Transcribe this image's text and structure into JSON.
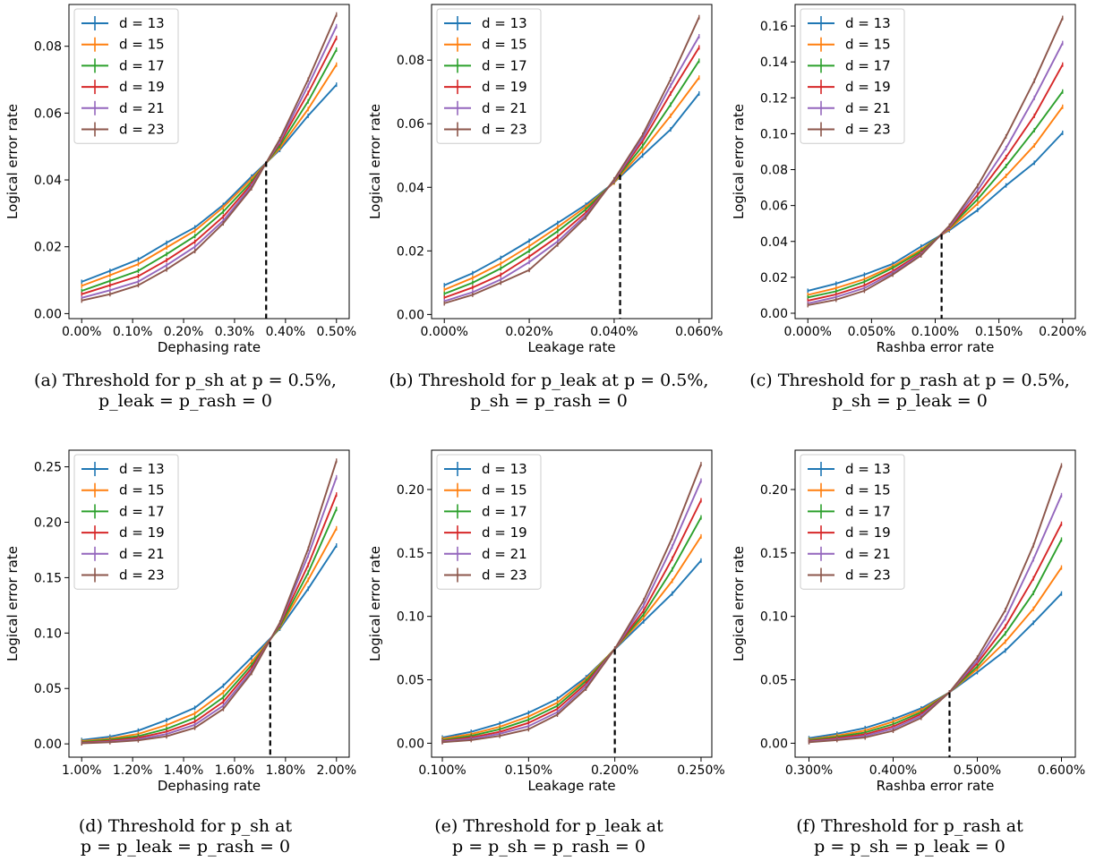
{
  "series_colors": [
    "#1f77b4",
    "#ff7f0e",
    "#2ca02c",
    "#d62728",
    "#9467bd",
    "#8c564b"
  ],
  "panels": [
    {
      "caption_line1": "(a) Threshold for p_sh at p = 0.5%,",
      "caption_line2": "p_leak = p_rash = 0"
    },
    {
      "caption_line1": "(b) Threshold for p_leak at p = 0.5%,",
      "caption_line2": "p_sh = p_rash = 0"
    },
    {
      "caption_line1": "(c) Threshold for p_rash at p = 0.5%,",
      "caption_line2": "p_sh = p_leak = 0"
    },
    {
      "caption_line1": "(d) Threshold for p_sh at",
      "caption_line2": "p = p_leak = p_rash = 0"
    },
    {
      "caption_line1": "(e) Threshold for p_leak at",
      "caption_line2": "p = p_sh = p_rash = 0"
    },
    {
      "caption_line1": "(f) Threshold for p_rash at",
      "caption_line2": "p = p_sh = p_leak = 0"
    }
  ],
  "chart_data": [
    {
      "type": "line",
      "xlabel": "Dephasing rate",
      "ylabel": "Logical error rate",
      "xlim": [
        -0.00025,
        0.00525
      ],
      "ylim": [
        -0.0015,
        0.0925
      ],
      "xticks": [
        0,
        0.001,
        0.002,
        0.003,
        0.004,
        0.005
      ],
      "xtick_labels": [
        "0.00%",
        "0.10%",
        "0.20%",
        "0.30%",
        "0.40%",
        "0.50%"
      ],
      "yticks": [
        0,
        0.02,
        0.04,
        0.06,
        0.08
      ],
      "ytick_labels": [
        "0.00",
        "0.02",
        "0.04",
        "0.06",
        "0.08"
      ],
      "threshold": {
        "x": 0.00362,
        "y": 0.0455
      },
      "legend": "upper left",
      "x": [
        0,
        0.000556,
        0.001111,
        0.001667,
        0.002222,
        0.002778,
        0.003333,
        0.003889,
        0.004444,
        0.005
      ],
      "series": [
        {
          "name": "d = 13",
          "values": [
            0.0095,
            0.0128,
            0.0162,
            0.0212,
            0.0258,
            0.0325,
            0.041,
            0.049,
            0.0592,
            0.0685
          ]
        },
        {
          "name": "d = 15",
          "values": [
            0.0083,
            0.0115,
            0.0148,
            0.0198,
            0.0248,
            0.0318,
            0.0403,
            0.0495,
            0.0612,
            0.0745
          ]
        },
        {
          "name": "d = 17",
          "values": [
            0.0068,
            0.0098,
            0.0128,
            0.0178,
            0.0232,
            0.0305,
            0.0395,
            0.0502,
            0.0635,
            0.079
          ]
        },
        {
          "name": "d = 19",
          "values": [
            0.0058,
            0.0085,
            0.0112,
            0.016,
            0.0215,
            0.029,
            0.0388,
            0.051,
            0.066,
            0.0825
          ]
        },
        {
          "name": "d = 21",
          "values": [
            0.0047,
            0.007,
            0.0096,
            0.0145,
            0.02,
            0.0278,
            0.0382,
            0.0515,
            0.0682,
            0.086
          ]
        },
        {
          "name": "d = 23",
          "values": [
            0.0039,
            0.0058,
            0.0085,
            0.0132,
            0.0187,
            0.027,
            0.0375,
            0.0522,
            0.07,
            0.0895
          ]
        }
      ]
    },
    {
      "type": "line",
      "xlabel": "Leakage rate",
      "ylabel": "Logical error rate",
      "xlim": [
        -3e-05,
        0.00063
      ],
      "ylim": [
        -0.0013,
        0.0975
      ],
      "xticks": [
        0,
        0.0002,
        0.0004,
        0.0006
      ],
      "xtick_labels": [
        "0.000%",
        "0.020%",
        "0.040%",
        "0.060%"
      ],
      "yticks": [
        0,
        0.02,
        0.04,
        0.06,
        0.08
      ],
      "ytick_labels": [
        "0.00",
        "0.02",
        "0.04",
        "0.06",
        "0.08"
      ],
      "threshold": {
        "x": 0.000414,
        "y": 0.044
      },
      "legend": "upper left",
      "x": [
        0,
        6.67e-05,
        0.000133,
        0.0002,
        0.000267,
        0.000333,
        0.0004,
        0.000467,
        0.000533,
        0.0006
      ],
      "series": [
        {
          "name": "d = 13",
          "values": [
            0.0092,
            0.013,
            0.0178,
            0.0232,
            0.0288,
            0.0345,
            0.0415,
            0.05,
            0.0582,
            0.0695
          ]
        },
        {
          "name": "d = 15",
          "values": [
            0.0078,
            0.0115,
            0.016,
            0.0215,
            0.0275,
            0.0338,
            0.0415,
            0.0515,
            0.0625,
            0.0745
          ]
        },
        {
          "name": "d = 17",
          "values": [
            0.0065,
            0.01,
            0.0145,
            0.02,
            0.0262,
            0.033,
            0.0418,
            0.053,
            0.066,
            0.0798
          ]
        },
        {
          "name": "d = 19",
          "values": [
            0.0053,
            0.0085,
            0.0125,
            0.0182,
            0.0245,
            0.032,
            0.042,
            0.0545,
            0.0695,
            0.084
          ]
        },
        {
          "name": "d = 21",
          "values": [
            0.0042,
            0.007,
            0.011,
            0.0165,
            0.023,
            0.0312,
            0.0422,
            0.0555,
            0.072,
            0.0875
          ]
        },
        {
          "name": "d = 23",
          "values": [
            0.0035,
            0.0062,
            0.01,
            0.014,
            0.022,
            0.0305,
            0.0425,
            0.0565,
            0.074,
            0.0935
          ]
        }
      ]
    },
    {
      "type": "line",
      "xlabel": "Rashba error rate",
      "ylabel": "Logical error rate",
      "xlim": [
        -0.0001,
        0.0021
      ],
      "ylim": [
        -0.003,
        0.172
      ],
      "xticks": [
        0,
        0.0005,
        0.001,
        0.0015,
        0.002
      ],
      "xtick_labels": [
        "0.000%",
        "0.050%",
        "0.100%",
        "0.150%",
        "0.200%"
      ],
      "yticks": [
        0,
        0.02,
        0.04,
        0.06,
        0.08,
        0.1,
        0.12,
        0.14,
        0.16
      ],
      "ytick_labels": [
        "0.00",
        "0.02",
        "0.04",
        "0.06",
        "0.08",
        "0.10",
        "0.12",
        "0.14",
        "0.16"
      ],
      "threshold": {
        "x": 0.00105,
        "y": 0.044
      },
      "legend": "upper left",
      "x": [
        0,
        0.000222,
        0.000444,
        0.000667,
        0.000889,
        0.001111,
        0.001333,
        0.001556,
        0.001778,
        0.002
      ],
      "series": [
        {
          "name": "d = 13",
          "values": [
            0.0125,
            0.0165,
            0.0215,
            0.0275,
            0.0372,
            0.0462,
            0.0575,
            0.0712,
            0.0838,
            0.1005
          ]
        },
        {
          "name": "d = 15",
          "values": [
            0.0102,
            0.014,
            0.019,
            0.0262,
            0.0355,
            0.0468,
            0.061,
            0.0765,
            0.0935,
            0.115
          ]
        },
        {
          "name": "d = 17",
          "values": [
            0.0088,
            0.0122,
            0.0175,
            0.0252,
            0.0345,
            0.0475,
            0.0635,
            0.082,
            0.102,
            0.1235
          ]
        },
        {
          "name": "d = 19",
          "values": [
            0.007,
            0.0105,
            0.0155,
            0.0235,
            0.0335,
            0.0478,
            0.066,
            0.087,
            0.11,
            0.1385
          ]
        },
        {
          "name": "d = 21",
          "values": [
            0.0055,
            0.009,
            0.014,
            0.0225,
            0.0328,
            0.0482,
            0.0685,
            0.092,
            0.12,
            0.1505
          ]
        },
        {
          "name": "d = 23",
          "values": [
            0.0045,
            0.0075,
            0.0125,
            0.0215,
            0.0322,
            0.0488,
            0.071,
            0.0985,
            0.1295,
            0.1645
          ]
        }
      ]
    },
    {
      "type": "line",
      "xlabel": "Dephasing rate",
      "ylabel": "Logical error rate",
      "xlim": [
        0.0095,
        0.0205
      ],
      "ylim": [
        -0.012,
        0.265
      ],
      "xticks": [
        0.01,
        0.012,
        0.014,
        0.016,
        0.018,
        0.02
      ],
      "xtick_labels": [
        "1.00%",
        "1.20%",
        "1.40%",
        "1.60%",
        "1.80%",
        "2.00%"
      ],
      "yticks": [
        0,
        0.05,
        0.1,
        0.15,
        0.2,
        0.25
      ],
      "ytick_labels": [
        "0.00",
        "0.05",
        "0.10",
        "0.15",
        "0.20",
        "0.25"
      ],
      "threshold": {
        "x": 0.0174,
        "y": 0.092
      },
      "legend": "upper left",
      "x": [
        0.01,
        0.01111,
        0.01222,
        0.01333,
        0.01444,
        0.01556,
        0.01667,
        0.01778,
        0.01889,
        0.02
      ],
      "series": [
        {
          "name": "d = 13",
          "values": [
            0.0035,
            0.0065,
            0.012,
            0.0215,
            0.0325,
            0.0525,
            0.078,
            0.104,
            0.14,
            0.179
          ]
        },
        {
          "name": "d = 15",
          "values": [
            0.0025,
            0.0048,
            0.009,
            0.017,
            0.0275,
            0.0465,
            0.074,
            0.105,
            0.148,
            0.1945
          ]
        },
        {
          "name": "d = 17",
          "values": [
            0.0018,
            0.0038,
            0.007,
            0.0135,
            0.0235,
            0.042,
            0.0712,
            0.106,
            0.1545,
            0.212
          ]
        },
        {
          "name": "d = 19",
          "values": [
            0.0012,
            0.0028,
            0.0055,
            0.011,
            0.02,
            0.038,
            0.0685,
            0.1075,
            0.1615,
            0.225
          ]
        },
        {
          "name": "d = 21",
          "values": [
            0.0008,
            0.002,
            0.0042,
            0.0088,
            0.0172,
            0.0345,
            0.066,
            0.1085,
            0.17,
            0.2405
          ]
        },
        {
          "name": "d = 23",
          "values": [
            0.0005,
            0.0015,
            0.0032,
            0.0068,
            0.0145,
            0.0315,
            0.064,
            0.1095,
            0.176,
            0.2555
          ]
        }
      ]
    },
    {
      "type": "line",
      "xlabel": "Leakage rate",
      "ylabel": "Logical error rate",
      "xlim": [
        0.0009375,
        0.0025625
      ],
      "ylim": [
        -0.011,
        0.231
      ],
      "xticks": [
        0.001,
        0.0015,
        0.002,
        0.0025
      ],
      "xtick_labels": [
        "0.100%",
        "0.150%",
        "0.200%",
        "0.250%"
      ],
      "yticks": [
        0,
        0.05,
        0.1,
        0.15,
        0.2
      ],
      "ytick_labels": [
        "0.00",
        "0.05",
        "0.10",
        "0.15",
        "0.20"
      ],
      "threshold": {
        "x": 0.002,
        "y": 0.074
      },
      "legend": "upper left",
      "x": [
        0.001,
        0.001167,
        0.001333,
        0.0015,
        0.001667,
        0.001833,
        0.002,
        0.002167,
        0.002333,
        0.0025
      ],
      "series": [
        {
          "name": "d = 13",
          "values": [
            0.0045,
            0.009,
            0.0155,
            0.024,
            0.035,
            0.052,
            0.074,
            0.096,
            0.118,
            0.144
          ]
        },
        {
          "name": "d = 15",
          "values": [
            0.0035,
            0.0072,
            0.013,
            0.021,
            0.032,
            0.0505,
            0.0745,
            0.099,
            0.128,
            0.163
          ]
        },
        {
          "name": "d = 17",
          "values": [
            0.0025,
            0.0058,
            0.011,
            0.0185,
            0.0295,
            0.049,
            0.0745,
            0.1015,
            0.137,
            0.178
          ]
        },
        {
          "name": "d = 19",
          "values": [
            0.0018,
            0.0045,
            0.009,
            0.016,
            0.027,
            0.047,
            0.0745,
            0.1045,
            0.1455,
            0.1915
          ]
        },
        {
          "name": "d = 21",
          "values": [
            0.0013,
            0.0035,
            0.0075,
            0.0135,
            0.0245,
            0.045,
            0.0745,
            0.1085,
            0.155,
            0.207
          ]
        },
        {
          "name": "d = 23",
          "values": [
            0.0008,
            0.0025,
            0.0058,
            0.011,
            0.0225,
            0.043,
            0.0745,
            0.1125,
            0.162,
            0.22
          ]
        }
      ]
    },
    {
      "type": "line",
      "xlabel": "Rashba error rate",
      "ylabel": "Logical error rate",
      "xlim": [
        0.002835,
        0.006165
      ],
      "ylim": [
        -0.011,
        0.231
      ],
      "xticks": [
        0.003,
        0.004,
        0.005,
        0.006
      ],
      "xtick_labels": [
        "0.300%",
        "0.400%",
        "0.500%",
        "0.600%"
      ],
      "yticks": [
        0,
        0.05,
        0.1,
        0.15,
        0.2
      ],
      "ytick_labels": [
        "0.00",
        "0.05",
        "0.10",
        "0.15",
        "0.20"
      ],
      "threshold": {
        "x": 0.00467,
        "y": 0.04
      },
      "legend": "upper left",
      "x": [
        0.003,
        0.003333,
        0.003667,
        0.004,
        0.004333,
        0.004667,
        0.005,
        0.005333,
        0.005667,
        0.006
      ],
      "series": [
        {
          "name": "d = 13",
          "values": [
            0.004,
            0.0075,
            0.012,
            0.019,
            0.0275,
            0.04,
            0.056,
            0.073,
            0.095,
            0.118
          ]
        },
        {
          "name": "d = 15",
          "values": [
            0.003,
            0.006,
            0.01,
            0.017,
            0.026,
            0.04,
            0.0585,
            0.08,
            0.106,
            0.1385
          ]
        },
        {
          "name": "d = 17",
          "values": [
            0.0025,
            0.005,
            0.0085,
            0.015,
            0.0245,
            0.04,
            0.0605,
            0.0865,
            0.1185,
            0.1605
          ]
        },
        {
          "name": "d = 19",
          "values": [
            0.0018,
            0.004,
            0.007,
            0.0132,
            0.023,
            0.04,
            0.063,
            0.092,
            0.13,
            0.173
          ]
        },
        {
          "name": "d = 21",
          "values": [
            0.0012,
            0.0032,
            0.0058,
            0.0115,
            0.0215,
            0.04,
            0.065,
            0.0985,
            0.145,
            0.1955
          ]
        },
        {
          "name": "d = 23",
          "values": [
            0.0008,
            0.0025,
            0.0045,
            0.0098,
            0.02,
            0.04,
            0.0675,
            0.105,
            0.156,
            0.219
          ]
        }
      ]
    }
  ]
}
